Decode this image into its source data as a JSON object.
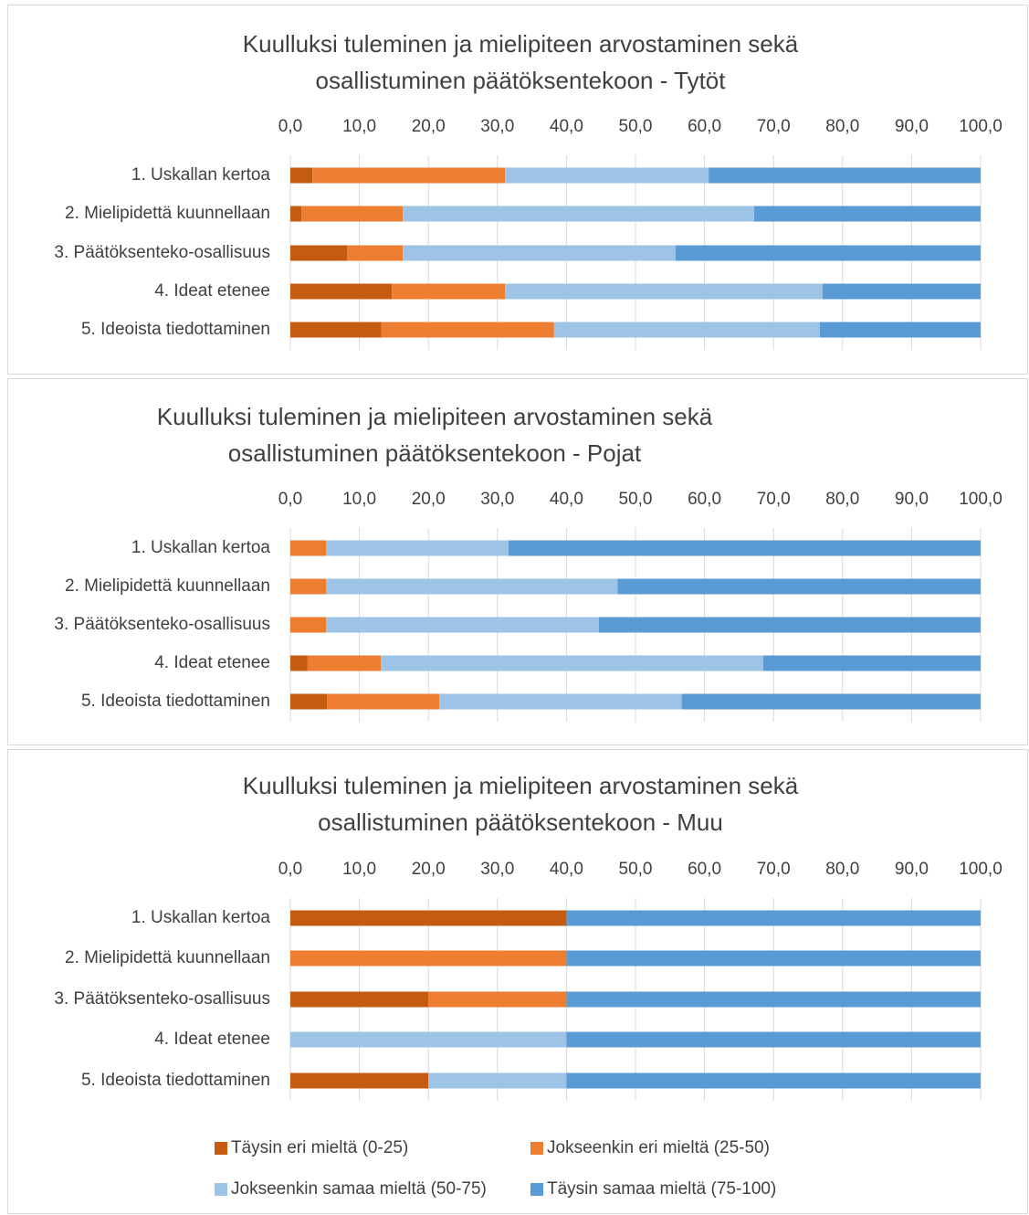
{
  "chart_data": [
    {
      "type": "stacked-bar-horizontal",
      "title": "Kuulluksi tuleminen ja mielipiteen arvostaminen sekä osallistuminen päätöksentekoon - Tytöt",
      "categories": [
        "1. Uskallan kertoa",
        "2. Mielipidettä kuunnellaan",
        "3. Päätöksenteko-osallisuus",
        "4. Ideat etenee",
        "5. Ideoista tiedottaminen"
      ],
      "series": [
        {
          "color": "#c55a11",
          "values": [
            3.2,
            1.6,
            8.2,
            14.7,
            13.2
          ]
        },
        {
          "color": "#ed7d31",
          "values": [
            27.9,
            14.7,
            8.1,
            16.4,
            25.0
          ]
        },
        {
          "color": "#9dc3e6",
          "values": [
            29.5,
            50.9,
            39.5,
            46.0,
            38.5
          ]
        },
        {
          "color": "#5b9bd5",
          "values": [
            39.4,
            32.8,
            44.2,
            22.9,
            23.3
          ]
        }
      ],
      "xlim": [
        0,
        100
      ],
      "xticks": [
        {
          "value": 0,
          "label": "0,0"
        },
        {
          "value": 10,
          "label": "10,0"
        },
        {
          "value": 20,
          "label": "20,0"
        },
        {
          "value": 30,
          "label": "30,0"
        },
        {
          "value": 40,
          "label": "40,0"
        },
        {
          "value": 50,
          "label": "50,0"
        },
        {
          "value": 60,
          "label": "60,0"
        },
        {
          "value": 70,
          "label": "70,0"
        },
        {
          "value": 80,
          "label": "80,0"
        },
        {
          "value": 90,
          "label": "90,0"
        },
        {
          "value": 100,
          "label": "100,0"
        }
      ],
      "grid": true
    },
    {
      "type": "stacked-bar-horizontal",
      "title": "Kuulluksi tuleminen ja mielipiteen arvostaminen sekä osallistuminen päätöksentekoon - Pojat",
      "categories": [
        "1. Uskallan kertoa",
        "2. Mielipidettä kuunnellaan",
        "3. Päätöksenteko-osallisuus",
        "4. Ideat etenee",
        "5. Ideoista tiedottaminen"
      ],
      "series": [
        {
          "color": "#c55a11",
          "values": [
            0,
            0,
            0,
            2.5,
            5.3
          ]
        },
        {
          "color": "#ed7d31",
          "values": [
            5.2,
            5.2,
            5.2,
            10.6,
            16.3
          ]
        },
        {
          "color": "#9dc3e6",
          "values": [
            26.4,
            42.2,
            39.5,
            55.4,
            35.1
          ]
        },
        {
          "color": "#5b9bd5",
          "values": [
            68.4,
            52.6,
            55.3,
            31.5,
            43.3
          ]
        }
      ],
      "xlim": [
        0,
        100
      ],
      "xticks": [
        {
          "value": 0,
          "label": "0,0"
        },
        {
          "value": 10,
          "label": "10,0"
        },
        {
          "value": 20,
          "label": "20,0"
        },
        {
          "value": 30,
          "label": "30,0"
        },
        {
          "value": 40,
          "label": "40,0"
        },
        {
          "value": 50,
          "label": "50,0"
        },
        {
          "value": 60,
          "label": "60,0"
        },
        {
          "value": 70,
          "label": "70,0"
        },
        {
          "value": 80,
          "label": "80,0"
        },
        {
          "value": 90,
          "label": "90,0"
        },
        {
          "value": 100,
          "label": "100,0"
        }
      ],
      "grid": true
    },
    {
      "type": "stacked-bar-horizontal",
      "title": "Kuulluksi tuleminen ja mielipiteen arvostaminen sekä osallistuminen päätöksentekoon - Muu",
      "categories": [
        "1. Uskallan kertoa",
        "2. Mielipidettä kuunnellaan",
        "3. Päätöksenteko-osallisuus",
        "4. Ideat etenee",
        "5. Ideoista tiedottaminen"
      ],
      "series": [
        {
          "name": "Täysin eri mieltä (0-25)",
          "color": "#c55a11",
          "values": [
            40,
            0,
            20,
            0,
            20
          ]
        },
        {
          "name": "Jokseenkin eri mieltä (25-50)",
          "color": "#ed7d31",
          "values": [
            0,
            40,
            20,
            0,
            0
          ]
        },
        {
          "name": "Jokseenkin samaa mieltä (50-75)",
          "color": "#9dc3e6",
          "values": [
            0,
            0,
            0,
            40,
            20
          ]
        },
        {
          "name": "Täysin samaa mieltä (75-100)",
          "color": "#5b9bd5",
          "values": [
            60,
            60,
            60,
            60,
            60
          ]
        }
      ],
      "xlim": [
        0,
        100
      ],
      "xticks": [
        {
          "value": 0,
          "label": "0,0"
        },
        {
          "value": 10,
          "label": "10,0"
        },
        {
          "value": 20,
          "label": "20,0"
        },
        {
          "value": 30,
          "label": "30,0"
        },
        {
          "value": 40,
          "label": "40,0"
        },
        {
          "value": 50,
          "label": "50,0"
        },
        {
          "value": 60,
          "label": "60,0"
        },
        {
          "value": 70,
          "label": "70,0"
        },
        {
          "value": 80,
          "label": "80,0"
        },
        {
          "value": 90,
          "label": "90,0"
        },
        {
          "value": 100,
          "label": "100,0"
        }
      ],
      "grid": true,
      "legend": "bottom"
    }
  ]
}
